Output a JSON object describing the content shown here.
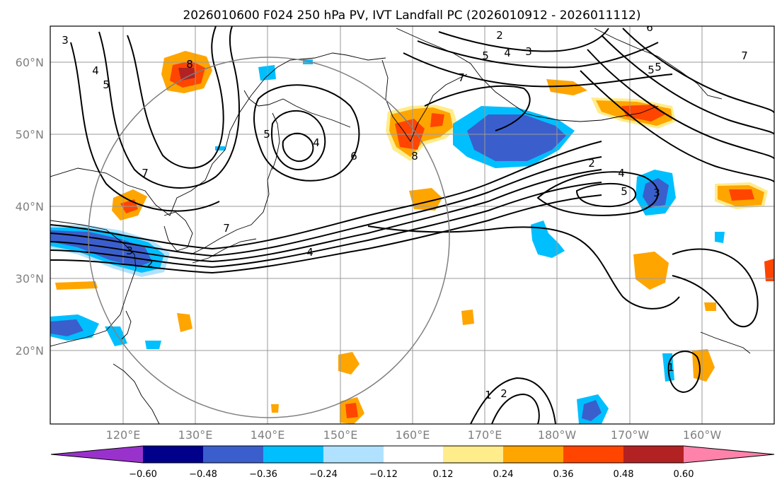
{
  "title": "2026010600 F024 250 hPa PV, IVT Landfall PC (2026010912 - 2026011112)",
  "map": {
    "lon_labels": [
      "120°E",
      "130°E",
      "140°E",
      "150°E",
      "160°E",
      "170°E",
      "180°W",
      "170°W",
      "160°W"
    ],
    "lat_labels": [
      "60°N",
      "50°N",
      "40°N",
      "30°N",
      "20°N"
    ],
    "contour_labels": [
      "3",
      "4",
      "5",
      "7",
      "8",
      "5",
      "4",
      "6",
      "2",
      "5",
      "4",
      "3",
      "7",
      "5",
      "7",
      "3",
      "2",
      "4",
      "8",
      "6",
      "2",
      "4",
      "5",
      "3",
      "1",
      "2",
      "1",
      "7",
      "5"
    ]
  },
  "colorbar": {
    "colors": [
      "#9932cc",
      "#00008b",
      "#3a5fcd",
      "#00bfff",
      "#b0e2ff",
      "#ffffff",
      "#ffec8b",
      "#ffa500",
      "#ff4500",
      "#b22222",
      "#ff82ab"
    ],
    "tick_labels": [
      "−0.60",
      "−0.48",
      "−0.36",
      "−0.24",
      "−0.12",
      "0.12",
      "0.24",
      "0.36",
      "0.48",
      "0.60"
    ]
  },
  "colors": {
    "grid": "#9a9a9a",
    "axis_text": "#808080",
    "circle": "#808080"
  }
}
